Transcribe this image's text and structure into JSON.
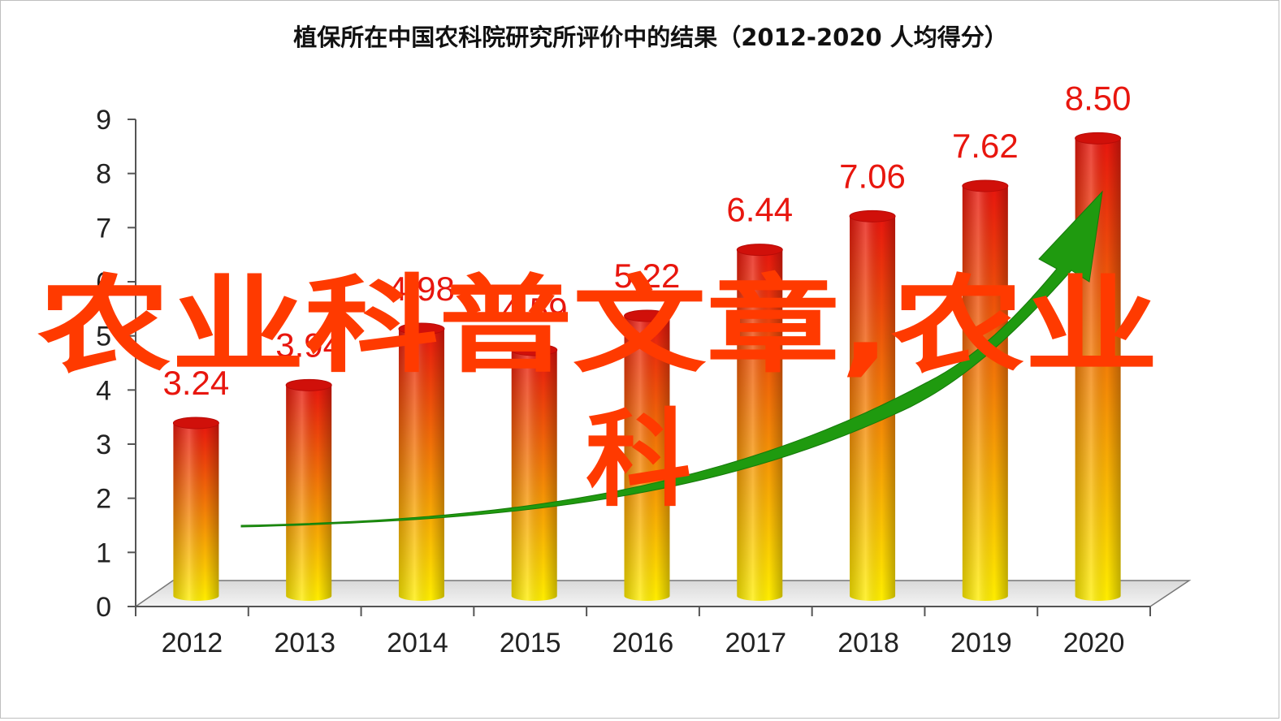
{
  "chart_data": {
    "type": "bar",
    "title": "植保所在中国农科院研究所评价中的结果（2012-2020  人均得分）",
    "categories": [
      "2012",
      "2013",
      "2014",
      "2015",
      "2016",
      "2017",
      "2018",
      "2019",
      "2020"
    ],
    "values": [
      3.24,
      3.94,
      4.98,
      4.59,
      5.22,
      6.44,
      7.06,
      7.62,
      8.5
    ],
    "value_labels": [
      "3.24",
      "3.94",
      "4.98",
      "4.59",
      "5.22",
      "6.44",
      "7.06",
      "7.62",
      "8.50"
    ],
    "ylim": [
      0,
      9
    ],
    "yticks": [
      "0",
      "1",
      "2",
      "3",
      "4",
      "5",
      "6",
      "7",
      "8",
      "9"
    ],
    "xlabel": "",
    "ylabel": "",
    "bar_style": "3d-cylinder",
    "bar_gradient": [
      "#e8160e",
      "#ffee00"
    ],
    "label_color": "#e8160e",
    "trend_arrow_color": "#1f9a0f",
    "grid": false
  },
  "overlay": {
    "line1": "农业科普文章,农业",
    "line2": "科",
    "color": "#ff3a00"
  }
}
